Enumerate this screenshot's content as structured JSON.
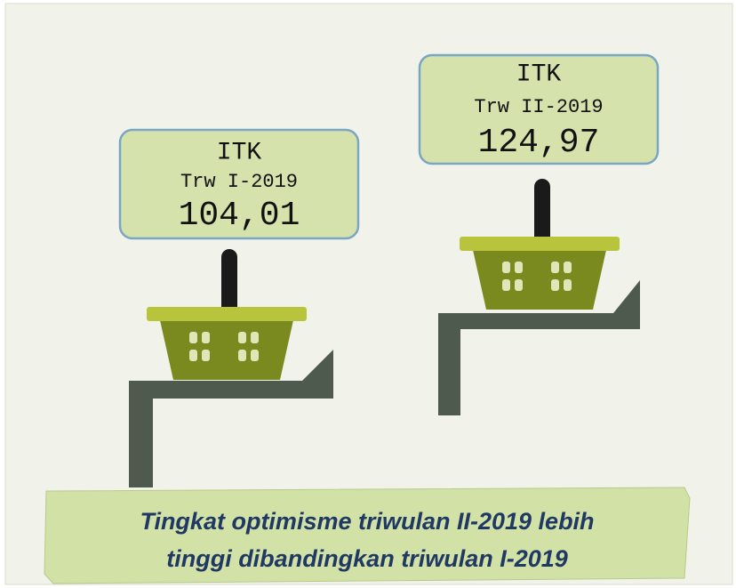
{
  "cards": [
    {
      "label": "ITK",
      "period": "Trw I-2019",
      "value": "104,01"
    },
    {
      "label": "ITK",
      "period": "Trw II-2019",
      "value": "124,97"
    }
  ],
  "caption": [
    "Tingkat optimisme triwulan II-2019 lebih",
    "tinggi dibandingkan triwulan I-2019"
  ]
}
